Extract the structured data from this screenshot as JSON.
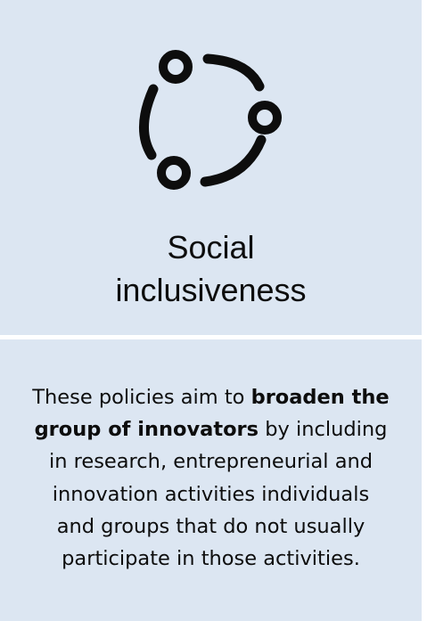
{
  "card": {
    "icon": "social-network-circle-icon",
    "title_line1": "Social",
    "title_line2": "inclusiveness",
    "description": {
      "line1_text": "These policies aim to ",
      "line1_bold": "broaden the",
      "line2_bold": "group of innovators",
      "line2_text": " by including",
      "line3": "in research, entrepreneurial and",
      "line4": "innovation activities individuals",
      "line5": "and groups that do not usually",
      "line6": "participate in those activities."
    }
  },
  "colors": {
    "panel_background": "#dce6f2",
    "text": "#0d0d0d",
    "icon": "#0d0d0d"
  }
}
